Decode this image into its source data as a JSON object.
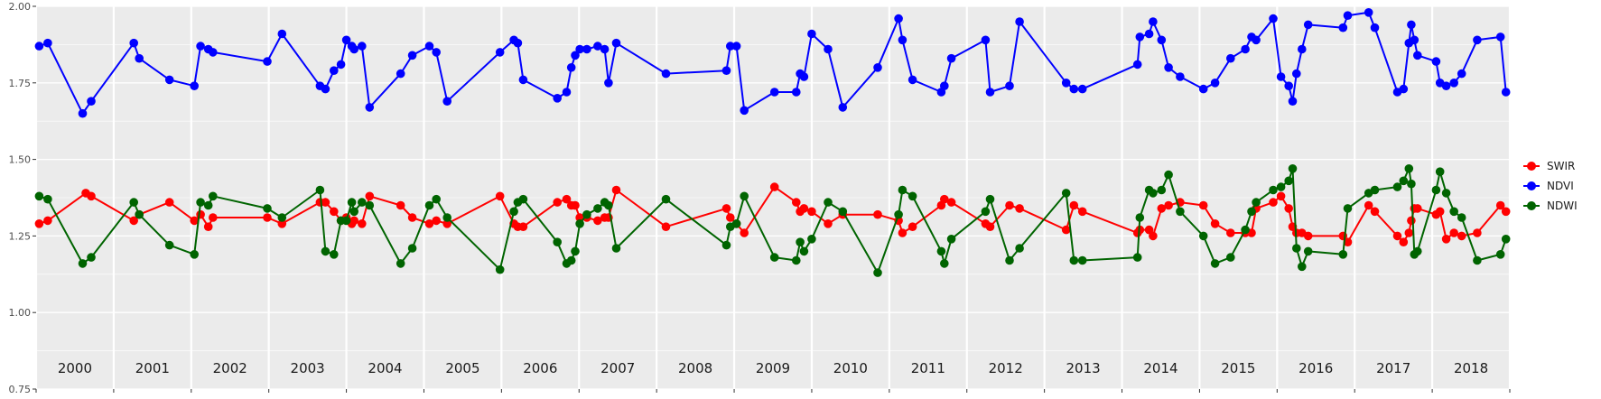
{
  "chart_data": {
    "type": "line",
    "title": "",
    "xlabel": "",
    "ylabel": "",
    "ylim": [
      0.75,
      2.0
    ],
    "xlim": [
      2000.0,
      2019.0
    ],
    "y_ticks": [
      "0.75",
      "1.00",
      "1.25",
      "1.50",
      "1.75",
      "2.00"
    ],
    "y_tick_values": [
      0.75,
      1.0,
      1.25,
      1.5,
      1.75,
      2.0
    ],
    "years": [
      "2000",
      "2001",
      "2002",
      "2003",
      "2004",
      "2005",
      "2006",
      "2007",
      "2008",
      "2009",
      "2010",
      "2011",
      "2012",
      "2013",
      "2014",
      "2015",
      "2016",
      "2017",
      "2018"
    ],
    "grid": true,
    "legend_position": "right",
    "series": [
      {
        "name": "SWIR",
        "color": "#ff0000",
        "x": [
          2000.04,
          2000.15,
          2000.64,
          2000.71,
          2001.26,
          2001.33,
          2001.72,
          2002.04,
          2002.12,
          2002.22,
          2002.28,
          2002.98,
          2003.17,
          2003.66,
          2003.73,
          2003.84,
          2003.93,
          2004.0,
          2004.07,
          2004.1,
          2004.2,
          2004.3,
          2004.7,
          2004.85,
          2005.07,
          2005.16,
          2005.3,
          2005.98,
          2006.16,
          2006.21,
          2006.28,
          2006.72,
          2006.84,
          2006.9,
          2006.95,
          2007.01,
          2007.1,
          2007.24,
          2007.33,
          2007.38,
          2007.48,
          2008.12,
          2008.9,
          2008.95,
          2009.03,
          2009.13,
          2009.52,
          2009.8,
          2009.85,
          2009.9,
          2010.0,
          2010.21,
          2010.4,
          2010.85,
          2011.12,
          2011.17,
          2011.3,
          2011.67,
          2011.71,
          2011.8,
          2012.24,
          2012.3,
          2012.55,
          2012.68,
          2013.28,
          2013.38,
          2013.49,
          2014.2,
          2014.23,
          2014.35,
          2014.4,
          2014.51,
          2014.6,
          2014.75,
          2015.05,
          2015.2,
          2015.4,
          2015.59,
          2015.67,
          2015.73,
          2015.95,
          2016.05,
          2016.15,
          2016.2,
          2016.25,
          2016.32,
          2016.4,
          2016.85,
          2016.91,
          2017.18,
          2017.26,
          2017.55,
          2017.63,
          2017.7,
          2017.73,
          2017.77,
          2017.81,
          2018.05,
          2018.1,
          2018.18,
          2018.28,
          2018.38,
          2018.58,
          2018.88,
          2018.95
        ],
        "values": [
          1.29,
          1.3,
          1.39,
          1.38,
          1.3,
          1.32,
          1.36,
          1.3,
          1.32,
          1.28,
          1.31,
          1.31,
          1.29,
          1.36,
          1.36,
          1.33,
          1.3,
          1.31,
          1.29,
          1.3,
          1.29,
          1.38,
          1.35,
          1.31,
          1.29,
          1.3,
          1.29,
          1.38,
          1.29,
          1.28,
          1.28,
          1.36,
          1.37,
          1.35,
          1.35,
          1.31,
          1.31,
          1.3,
          1.31,
          1.31,
          1.4,
          1.28,
          1.34,
          1.31,
          1.29,
          1.26,
          1.41,
          1.36,
          1.33,
          1.34,
          1.33,
          1.29,
          1.32,
          1.32,
          1.3,
          1.26,
          1.28,
          1.35,
          1.37,
          1.36,
          1.29,
          1.28,
          1.35,
          1.34,
          1.27,
          1.35,
          1.33,
          1.26,
          1.27,
          1.27,
          1.25,
          1.34,
          1.35,
          1.36,
          1.35,
          1.29,
          1.26,
          1.26,
          1.26,
          1.34,
          1.36,
          1.38,
          1.34,
          1.28,
          1.26,
          1.26,
          1.25,
          1.25,
          1.23,
          1.35,
          1.33,
          1.25,
          1.23,
          1.26,
          1.3,
          1.34,
          1.34,
          1.32,
          1.33,
          1.24,
          1.26,
          1.25,
          1.26,
          1.35,
          1.33
        ],
        "_note": ""
      },
      {
        "name": "NDVI",
        "color": "#0000ff",
        "x": [
          2000.04,
          2000.15,
          2000.6,
          2000.71,
          2001.26,
          2001.33,
          2001.72,
          2002.04,
          2002.12,
          2002.22,
          2002.28,
          2002.98,
          2003.17,
          2003.66,
          2003.73,
          2003.84,
          2003.93,
          2004.0,
          2004.07,
          2004.1,
          2004.2,
          2004.3,
          2004.7,
          2004.85,
          2005.07,
          2005.16,
          2005.3,
          2005.98,
          2006.16,
          2006.21,
          2006.28,
          2006.72,
          2006.84,
          2006.9,
          2006.95,
          2007.01,
          2007.1,
          2007.24,
          2007.33,
          2007.38,
          2007.48,
          2008.12,
          2008.9,
          2008.95,
          2009.03,
          2009.13,
          2009.52,
          2009.8,
          2009.85,
          2009.9,
          2010.0,
          2010.21,
          2010.4,
          2010.85,
          2011.12,
          2011.17,
          2011.3,
          2011.67,
          2011.71,
          2011.8,
          2012.24,
          2012.3,
          2012.55,
          2012.68,
          2013.28,
          2013.38,
          2013.49,
          2014.2,
          2014.23,
          2014.35,
          2014.4,
          2014.51,
          2014.6,
          2014.75,
          2015.05,
          2015.2,
          2015.4,
          2015.59,
          2015.67,
          2015.73,
          2015.95,
          2016.05,
          2016.15,
          2016.2,
          2016.25,
          2016.32,
          2016.4,
          2016.85,
          2016.91,
          2017.18,
          2017.26,
          2017.55,
          2017.63,
          2017.7,
          2017.73,
          2017.77,
          2017.81,
          2018.05,
          2018.1,
          2018.18,
          2018.28,
          2018.38,
          2018.58,
          2018.88,
          2018.95
        ],
        "values": [
          1.87,
          1.88,
          1.65,
          1.69,
          1.88,
          1.83,
          1.76,
          1.74,
          1.87,
          1.86,
          1.85,
          1.82,
          1.91,
          1.74,
          1.73,
          1.79,
          1.81,
          1.89,
          1.87,
          1.86,
          1.87,
          1.67,
          1.78,
          1.84,
          1.87,
          1.85,
          1.69,
          1.85,
          1.89,
          1.88,
          1.76,
          1.7,
          1.72,
          1.8,
          1.84,
          1.86,
          1.86,
          1.87,
          1.86,
          1.75,
          1.88,
          1.78,
          1.79,
          1.87,
          1.87,
          1.66,
          1.72,
          1.72,
          1.78,
          1.77,
          1.91,
          1.86,
          1.67,
          1.8,
          1.96,
          1.89,
          1.76,
          1.72,
          1.74,
          1.83,
          1.89,
          1.72,
          1.74,
          1.95,
          1.75,
          1.73,
          1.73,
          1.81,
          1.9,
          1.91,
          1.95,
          1.89,
          1.8,
          1.77,
          1.73,
          1.75,
          1.83,
          1.86,
          1.9,
          1.89,
          1.96,
          1.77,
          1.74,
          1.69,
          1.78,
          1.86,
          1.94,
          1.93,
          1.97,
          1.98,
          1.93,
          1.72,
          1.73,
          1.88,
          1.94,
          1.89,
          1.84,
          1.82,
          1.75,
          1.74,
          1.75,
          1.78,
          1.89,
          1.9,
          1.72
        ],
        "_note": ""
      },
      {
        "name": "NDWI",
        "color": "#006400",
        "x": [
          2000.04,
          2000.15,
          2000.6,
          2000.71,
          2001.26,
          2001.33,
          2001.72,
          2002.04,
          2002.12,
          2002.22,
          2002.28,
          2002.98,
          2003.17,
          2003.66,
          2003.73,
          2003.84,
          2003.93,
          2004.0,
          2004.07,
          2004.1,
          2004.2,
          2004.3,
          2004.7,
          2004.85,
          2005.07,
          2005.16,
          2005.3,
          2005.98,
          2006.16,
          2006.21,
          2006.28,
          2006.72,
          2006.84,
          2006.9,
          2006.95,
          2007.01,
          2007.1,
          2007.24,
          2007.33,
          2007.38,
          2007.48,
          2008.12,
          2008.9,
          2008.95,
          2009.03,
          2009.13,
          2009.52,
          2009.8,
          2009.85,
          2009.9,
          2010.0,
          2010.21,
          2010.4,
          2010.85,
          2011.12,
          2011.17,
          2011.3,
          2011.67,
          2011.71,
          2011.8,
          2012.24,
          2012.3,
          2012.55,
          2012.68,
          2013.28,
          2013.38,
          2013.49,
          2014.2,
          2014.23,
          2014.35,
          2014.4,
          2014.51,
          2014.6,
          2014.75,
          2015.05,
          2015.2,
          2015.4,
          2015.59,
          2015.67,
          2015.73,
          2015.95,
          2016.05,
          2016.15,
          2016.2,
          2016.25,
          2016.32,
          2016.4,
          2016.85,
          2016.91,
          2017.18,
          2017.26,
          2017.55,
          2017.63,
          2017.7,
          2017.73,
          2017.77,
          2017.81,
          2018.05,
          2018.1,
          2018.18,
          2018.28,
          2018.38,
          2018.58,
          2018.88,
          2018.95
        ],
        "values": [
          1.38,
          1.37,
          1.16,
          1.18,
          1.36,
          1.32,
          1.22,
          1.19,
          1.36,
          1.35,
          1.38,
          1.34,
          1.31,
          1.4,
          1.2,
          1.19,
          1.3,
          1.3,
          1.36,
          1.33,
          1.36,
          1.35,
          1.16,
          1.21,
          1.35,
          1.37,
          1.31,
          1.14,
          1.33,
          1.36,
          1.37,
          1.23,
          1.16,
          1.17,
          1.2,
          1.29,
          1.32,
          1.34,
          1.36,
          1.35,
          1.21,
          1.37,
          1.22,
          1.28,
          1.29,
          1.38,
          1.18,
          1.17,
          1.23,
          1.2,
          1.24,
          1.36,
          1.33,
          1.13,
          1.32,
          1.4,
          1.38,
          1.2,
          1.16,
          1.24,
          1.33,
          1.37,
          1.17,
          1.21,
          1.39,
          1.17,
          1.17,
          1.18,
          1.31,
          1.4,
          1.39,
          1.4,
          1.45,
          1.33,
          1.25,
          1.16,
          1.18,
          1.27,
          1.33,
          1.36,
          1.4,
          1.41,
          1.43,
          1.47,
          1.21,
          1.15,
          1.2,
          1.19,
          1.34,
          1.39,
          1.4,
          1.41,
          1.43,
          1.47,
          1.42,
          1.19,
          1.2,
          1.4,
          1.46,
          1.39,
          1.33,
          1.31,
          1.17,
          1.19,
          1.24
        ],
        "_note": ""
      }
    ]
  }
}
